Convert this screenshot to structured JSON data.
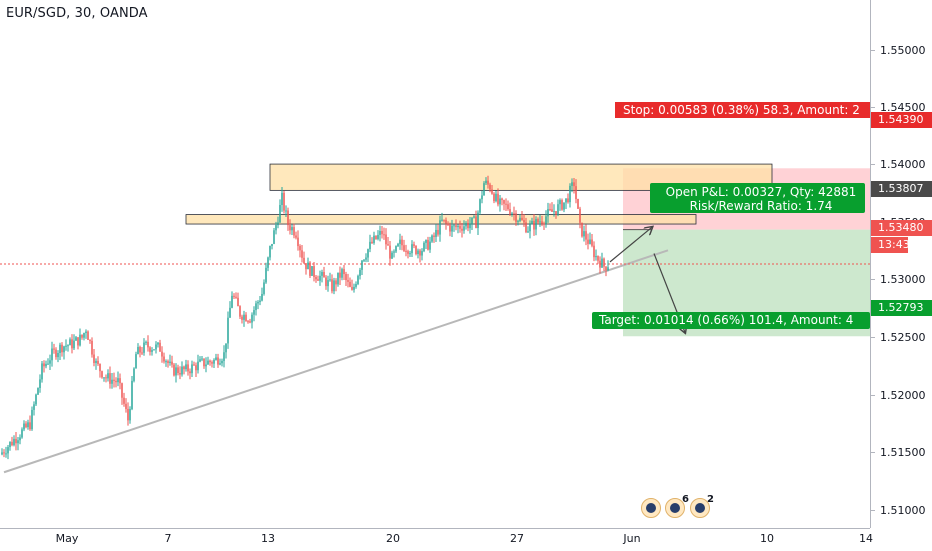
{
  "header": {
    "symbol_title": "EUR/SGD, 30, OANDA"
  },
  "colors": {
    "up": "#26a69a",
    "down": "#ef5350",
    "stop_zone": "#ffcdd2",
    "target_zone": "#c8e6c9",
    "zone_fill": "#ffe0a6",
    "stop_label_bg": "#e82b2b",
    "target_label_bg": "#089f2e",
    "current_price_bg": "#ef5350",
    "trendline": "#b8b8b8",
    "position_label_bg": "#4a4a4a"
  },
  "price_axis": {
    "ticks": [
      "1.55000",
      "1.54500",
      "1.54000",
      "1.53500",
      "1.53000",
      "1.52500",
      "1.52000",
      "1.51500",
      "1.51000"
    ],
    "labels": {
      "stop": "1.54390",
      "entry": "1.53807",
      "current": "1.53480",
      "countdown": "13:43",
      "target": "1.52793"
    }
  },
  "time_axis": {
    "ticks": [
      "May",
      "7",
      "13",
      "20",
      "27",
      "Jun",
      "10",
      "14"
    ]
  },
  "risk_reward": {
    "stop_text": "Stop: 0.00583 (0.38%) 58.3, Amount: 2",
    "open_pnl_text": "Open P&L: 0.00327, Qty: 42881",
    "ratio_text": "Risk/Reward Ratio: 1.74",
    "target_text": "Target: 0.01014 (0.66%) 101.4, Amount: 4"
  },
  "events": {
    "badge_2_count": "6",
    "badge_3_count": "2"
  },
  "chart_data": {
    "type": "candlestick",
    "title": "EUR/SGD, 30, OANDA",
    "ylim": [
      1.5097,
      1.5599
    ],
    "yticks": [
      1.55,
      1.545,
      1.54,
      1.535,
      1.53,
      1.525,
      1.52,
      1.515,
      1.51
    ],
    "xticks": [
      "May",
      "7",
      "13",
      "20",
      "27",
      "Jun",
      "10",
      "14"
    ],
    "price_path": [
      [
        0,
        1.5167
      ],
      [
        8,
        1.5175
      ],
      [
        18,
        1.5185
      ],
      [
        30,
        1.5196
      ],
      [
        42,
        1.5248
      ],
      [
        52,
        1.5262
      ],
      [
        62,
        1.527
      ],
      [
        72,
        1.5272
      ],
      [
        82,
        1.5278
      ],
      [
        86,
        1.5287
      ],
      [
        96,
        1.5253
      ],
      [
        106,
        1.524
      ],
      [
        118,
        1.5236
      ],
      [
        128,
        1.52
      ],
      [
        136,
        1.5262
      ],
      [
        146,
        1.527
      ],
      [
        160,
        1.5268
      ],
      [
        172,
        1.5247
      ],
      [
        186,
        1.5247
      ],
      [
        200,
        1.5253
      ],
      [
        214,
        1.5256
      ],
      [
        224,
        1.5262
      ],
      [
        232,
        1.532
      ],
      [
        240,
        1.5301
      ],
      [
        250,
        1.5297
      ],
      [
        262,
        1.532
      ],
      [
        270,
        1.5362
      ],
      [
        276,
        1.5385
      ],
      [
        282,
        1.541
      ],
      [
        288,
        1.5386
      ],
      [
        296,
        1.5378
      ],
      [
        304,
        1.535
      ],
      [
        312,
        1.534
      ],
      [
        322,
        1.5335
      ],
      [
        332,
        1.5326
      ],
      [
        342,
        1.534
      ],
      [
        352,
        1.532
      ],
      [
        362,
        1.5353
      ],
      [
        372,
        1.5368
      ],
      [
        382,
        1.5378
      ],
      [
        392,
        1.5353
      ],
      [
        400,
        1.5367
      ],
      [
        412,
        1.5362
      ],
      [
        422,
        1.5362
      ],
      [
        432,
        1.537
      ],
      [
        442,
        1.5388
      ],
      [
        452,
        1.5382
      ],
      [
        464,
        1.5385
      ],
      [
        476,
        1.5388
      ],
      [
        484,
        1.5425
      ],
      [
        490,
        1.5422
      ],
      [
        498,
        1.5405
      ],
      [
        508,
        1.5402
      ],
      [
        518,
        1.5392
      ],
      [
        528,
        1.5382
      ],
      [
        538,
        1.5388
      ],
      [
        548,
        1.5395
      ],
      [
        556,
        1.54
      ],
      [
        566,
        1.5408
      ],
      [
        574,
        1.5425
      ],
      [
        580,
        1.5382
      ],
      [
        588,
        1.537
      ],
      [
        596,
        1.5355
      ],
      [
        604,
        1.5346
      ],
      [
        608,
        1.5348
      ]
    ],
    "zones": [
      {
        "from_x": 270,
        "to_x": 772,
        "top": 1.5443,
        "bottom": 1.5418
      },
      {
        "from_x": 186,
        "to_x": 696,
        "top": 1.5395,
        "bottom": 1.5386
      }
    ],
    "trendline": {
      "from": [
        4,
        1.515
      ],
      "to": [
        668,
        1.5361
      ]
    },
    "current_price": 1.5348,
    "position": {
      "entry": 1.53807,
      "stop": 1.5439,
      "target": 1.52793,
      "from_x": 623,
      "to_x": 870,
      "entry_bar_x": 652
    },
    "arrows": [
      {
        "from": [
          610,
          1.535
        ],
        "to": [
          652,
          1.5383
        ]
      },
      {
        "from": [
          654,
          1.5358
        ],
        "to": [
          685,
          1.5283
        ]
      }
    ]
  }
}
